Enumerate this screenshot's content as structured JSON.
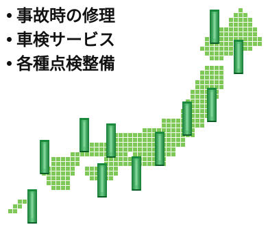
{
  "services": [
    "事故時の修理",
    "車検サービス",
    "各種点検整備"
  ],
  "colors": {
    "map_tile": "#7dc857",
    "banner_dark": "#1a8a3c",
    "banner_light": "#8cd9a1"
  },
  "map_icon": "japan-mosaic-map-icon",
  "banner_icon": "green-banner-icon"
}
